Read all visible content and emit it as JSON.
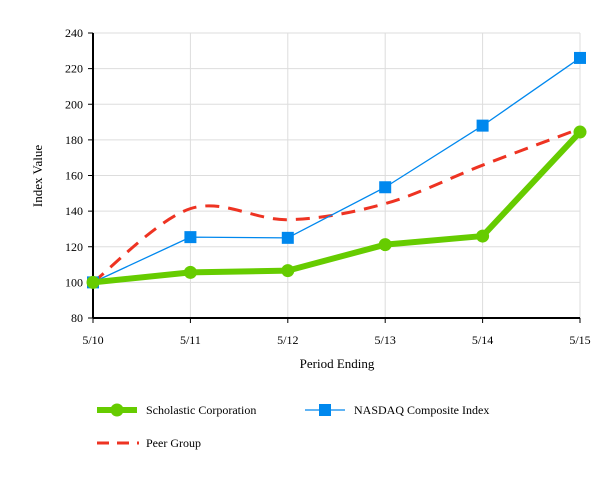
{
  "chart_data": {
    "type": "line",
    "title": "",
    "xlabel": "Period Ending",
    "ylabel": "Index Value",
    "categories": [
      "5/10",
      "5/11",
      "5/12",
      "5/13",
      "5/14",
      "5/15"
    ],
    "ylim": [
      80,
      240
    ],
    "yticks": [
      80,
      100,
      120,
      140,
      160,
      180,
      200,
      220,
      240
    ],
    "grid": true,
    "legend_position": "bottom",
    "series": [
      {
        "name": "Scholastic Corporation",
        "color": "#66cc00",
        "marker": "circle",
        "style": "solid-thick",
        "values": [
          100,
          105.6,
          106.6,
          121.2,
          126.0,
          184.4
        ]
      },
      {
        "name": "NASDAQ Composite Index",
        "color": "#0088ee",
        "marker": "square",
        "style": "solid-thin",
        "values": [
          100,
          125.4,
          125.0,
          153.4,
          188.0,
          226.0
        ]
      },
      {
        "name": "Peer Group",
        "color": "#ee3322",
        "marker": "none",
        "style": "dashed-smooth",
        "values": [
          100,
          141.4,
          135.2,
          144.2,
          165.8,
          186.3
        ]
      }
    ]
  }
}
